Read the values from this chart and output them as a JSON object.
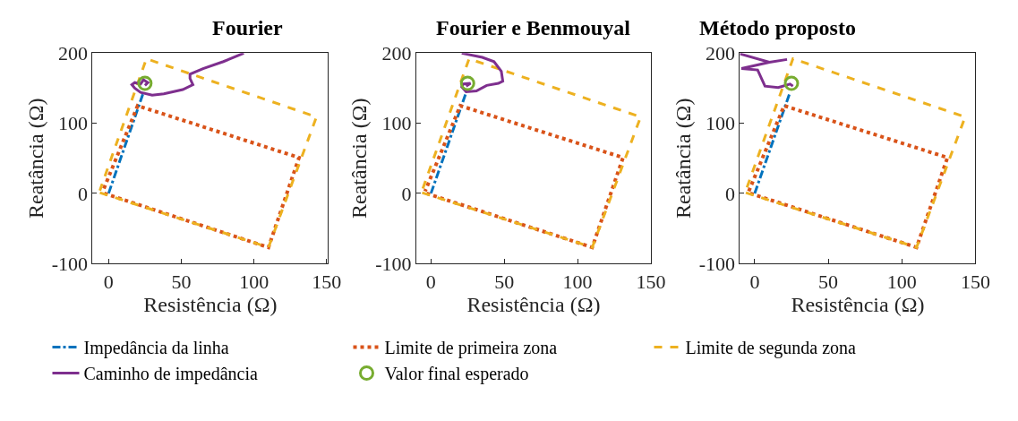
{
  "chart_data": [
    {
      "type": "line",
      "title": "Fourier",
      "xlabel": "Resistência (Ω)",
      "ylabel": "Reatância (Ω)",
      "xlim": [
        -11,
        151
      ],
      "ylim": [
        -100,
        200
      ],
      "xticks": [
        0,
        50,
        100,
        150
      ],
      "yticks": [
        -100,
        0,
        100,
        200
      ],
      "legend": "bottom",
      "series": [
        {
          "name": "Impedância da linha",
          "color": "#0072bd",
          "line_style": "dashdot",
          "x": [
            0,
            24
          ],
          "values": [
            0,
            144
          ]
        },
        {
          "name": "Limite de primeira zona",
          "color": "#d95319",
          "line_style": "dotted",
          "x": [
            -3,
            110,
            131,
            20,
            -4
          ],
          "values": [
            0,
            -77,
            51,
            125,
            3
          ]
        },
        {
          "name": "Limite de segunda zona",
          "color": "#edb120",
          "line_style": "dashed",
          "x": [
            -6,
            110,
            143,
            26,
            -6
          ],
          "values": [
            1,
            -77,
            109,
            192,
            4
          ]
        },
        {
          "name": "Caminho de impedância",
          "color": "#7e2f8e",
          "line_style": "solid",
          "x": [
            93,
            79,
            65,
            56,
            56,
            58,
            51,
            38,
            30,
            22,
            18,
            16,
            18,
            22,
            24,
            27,
            25
          ],
          "values": [
            200,
            188,
            178,
            170,
            164,
            155,
            148,
            142,
            140,
            144,
            150,
            155,
            158,
            156,
            162,
            158,
            154
          ]
        },
        {
          "name": "Valor final esperado",
          "color": "#77ac30",
          "type": "scatter",
          "marker": "circle",
          "x": [
            25
          ],
          "values": [
            157
          ]
        }
      ]
    },
    {
      "type": "line",
      "title": "Fourier e Benmouyal",
      "xlabel": "Resistência (Ω)",
      "ylabel": "Reatância (Ω)",
      "xlim": [
        -10,
        150
      ],
      "ylim": [
        -100,
        200
      ],
      "xticks": [
        0,
        50,
        100,
        150
      ],
      "yticks": [
        -100,
        0,
        100,
        200
      ],
      "series": [
        {
          "color": "#0072bd",
          "line_style": "dashdot",
          "x": [
            0,
            24
          ],
          "values": [
            0,
            144
          ]
        },
        {
          "color": "#d95319",
          "line_style": "dotted",
          "x": [
            -3,
            110,
            131,
            20,
            -4
          ],
          "values": [
            0,
            -77,
            51,
            125,
            3
          ]
        },
        {
          "color": "#edb120",
          "line_style": "dashed",
          "x": [
            -6,
            110,
            143,
            26,
            -6
          ],
          "values": [
            1,
            -77,
            109,
            192,
            4
          ]
        },
        {
          "color": "#7e2f8e",
          "line_style": "solid",
          "x": [
            21,
            35,
            43,
            48,
            49,
            46,
            38,
            31,
            24,
            21,
            22,
            27,
            24
          ],
          "values": [
            200,
            194,
            188,
            174,
            160,
            157,
            154,
            146,
            145,
            152,
            156,
            157,
            153
          ]
        },
        {
          "color": "#77ac30",
          "type": "scatter",
          "marker": "circle",
          "x": [
            25
          ],
          "values": [
            157
          ]
        }
      ]
    },
    {
      "type": "line",
      "title": "Método proposto",
      "xlabel": "Resistência (Ω)",
      "ylabel": "Reatância (Ω)",
      "xlim": [
        -10,
        150
      ],
      "ylim": [
        -100,
        200
      ],
      "xticks": [
        0,
        50,
        100,
        150
      ],
      "yticks": [
        -100,
        0,
        100,
        200
      ],
      "series": [
        {
          "color": "#0072bd",
          "line_style": "dashdot",
          "x": [
            0,
            24
          ],
          "values": [
            0,
            144
          ]
        },
        {
          "color": "#d95319",
          "line_style": "dotted",
          "x": [
            -3,
            110,
            131,
            20,
            -4
          ],
          "values": [
            0,
            -77,
            51,
            125,
            3
          ]
        },
        {
          "color": "#edb120",
          "line_style": "dashed",
          "x": [
            -6,
            110,
            143,
            26,
            -6
          ],
          "values": [
            1,
            -77,
            109,
            192,
            4
          ]
        },
        {
          "color": "#7e2f8e",
          "line_style": "solid",
          "x": [
            -10,
            10,
            22,
            10,
            -9,
            2,
            7,
            16,
            24,
            26
          ],
          "values": [
            199,
            187,
            191,
            187,
            178,
            176,
            153,
            151,
            156,
            153
          ]
        },
        {
          "color": "#77ac30",
          "type": "scatter",
          "marker": "circle",
          "x": [
            25
          ],
          "values": [
            157
          ]
        }
      ]
    }
  ]
}
